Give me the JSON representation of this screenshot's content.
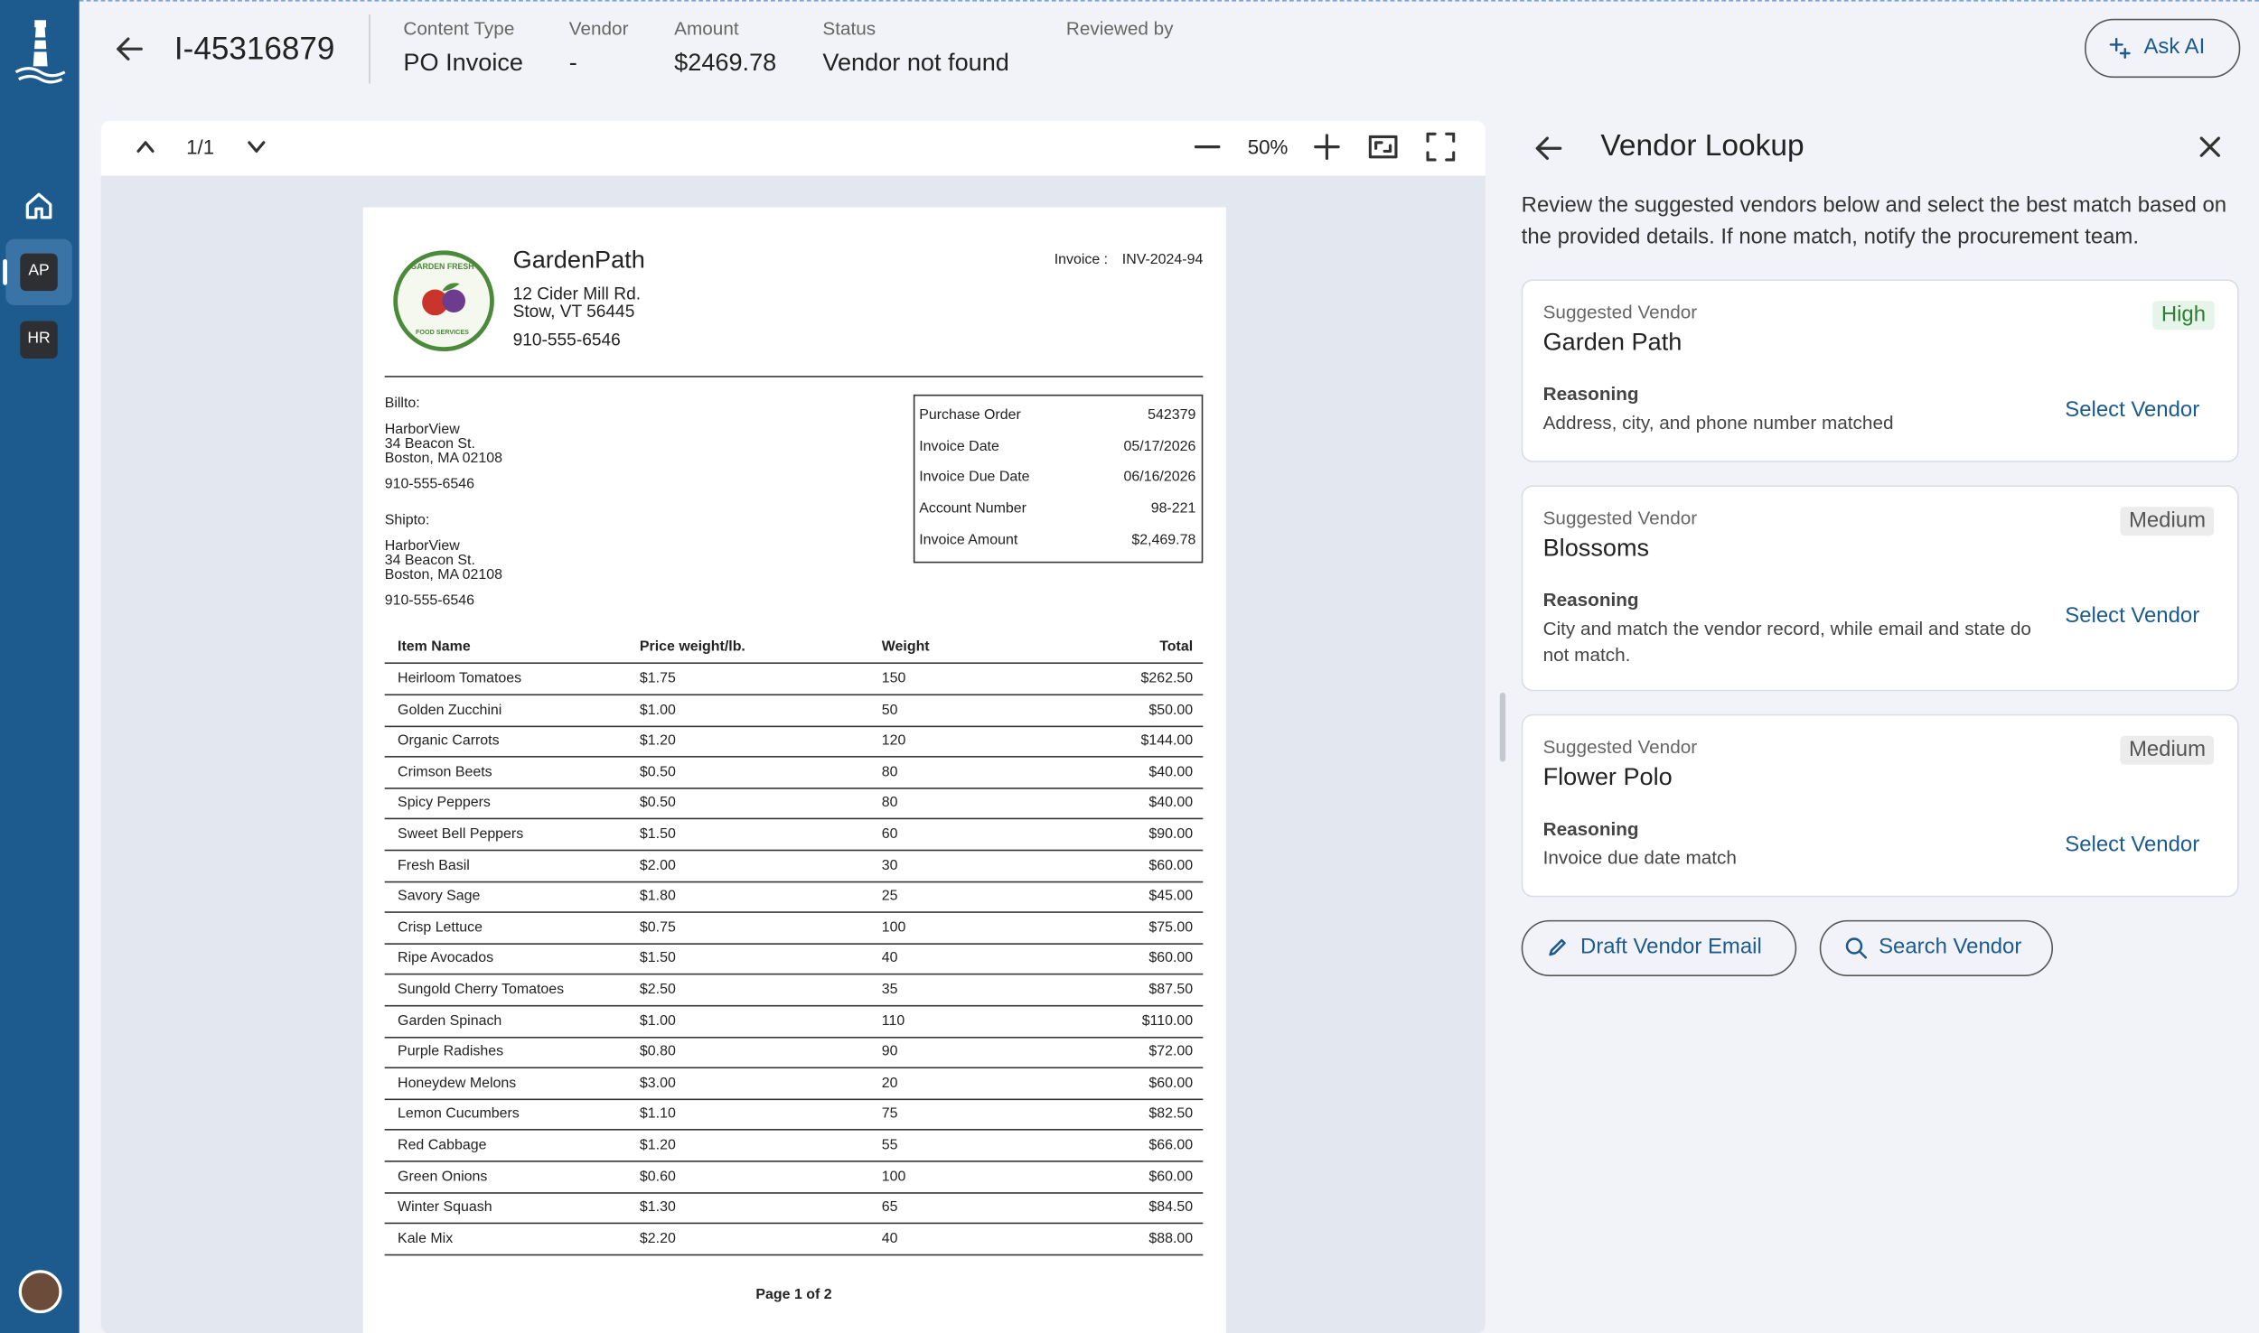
{
  "app": {
    "sidebar_apps": [
      "AP",
      "HR"
    ]
  },
  "header": {
    "invoice_id": "I-45316879",
    "fields": [
      {
        "label": "Content Type",
        "value": "PO Invoice"
      },
      {
        "label": "Vendor",
        "value": "-"
      },
      {
        "label": "Amount",
        "value": "$2469.78"
      },
      {
        "label": "Status",
        "value": "Vendor not found"
      }
    ],
    "reviewed_by_label": "Reviewed by",
    "ask_ai": "Ask AI"
  },
  "viewer": {
    "page_indicator": "1/1",
    "zoom": "50%"
  },
  "invoice": {
    "logo_top": "GARDEN FRESH",
    "logo_bottom": "FOOD SERVICES",
    "company": "GardenPath",
    "address": [
      "12 Cider Mill Rd.",
      "Stow, VT 56445"
    ],
    "phone": "910-555-6546",
    "invoice_label": "Invoice :",
    "invoice_number": "INV-2024-94",
    "bill_to": {
      "label": "Billto:",
      "lines": [
        "HarborView",
        "34 Beacon St.",
        "Boston, MA 02108"
      ],
      "phone": "910-555-6546"
    },
    "ship_to": {
      "label": "Shipto:",
      "lines": [
        "HarborView",
        "34 Beacon St.",
        "Boston, MA 02108"
      ],
      "phone": "910-555-6546"
    },
    "summary": [
      [
        "Purchase Order",
        "542379"
      ],
      [
        "Invoice Date",
        "05/17/2026"
      ],
      [
        "Invoice Due Date",
        "06/16/2026"
      ],
      [
        "Account Number",
        "98-221"
      ],
      [
        "Invoice Amount",
        "$2,469.78"
      ]
    ],
    "items": {
      "columns": [
        "Item Name",
        "Price weight/lb.",
        "Weight",
        "Total"
      ],
      "rows": [
        [
          "Heirloom Tomatoes",
          "$1.75",
          "150",
          "$262.50"
        ],
        [
          "Golden Zucchini",
          "$1.00",
          "50",
          "$50.00"
        ],
        [
          "Organic Carrots",
          "$1.20",
          "120",
          "$144.00"
        ],
        [
          "Crimson Beets",
          "$0.50",
          "80",
          "$40.00"
        ],
        [
          "Spicy Peppers",
          "$0.50",
          "80",
          "$40.00"
        ],
        [
          "Sweet Bell Peppers",
          "$1.50",
          "60",
          "$90.00"
        ],
        [
          "Fresh Basil",
          "$2.00",
          "30",
          "$60.00"
        ],
        [
          "Savory Sage",
          "$1.80",
          "25",
          "$45.00"
        ],
        [
          "Crisp Lettuce",
          "$0.75",
          "100",
          "$75.00"
        ],
        [
          "Ripe Avocados",
          "$1.50",
          "40",
          "$60.00"
        ],
        [
          "Sungold Cherry Tomatoes",
          "$2.50",
          "35",
          "$87.50"
        ],
        [
          "Garden Spinach",
          "$1.00",
          "110",
          "$110.00"
        ],
        [
          "Purple Radishes",
          "$0.80",
          "90",
          "$72.00"
        ],
        [
          "Honeydew Melons",
          "$3.00",
          "20",
          "$60.00"
        ],
        [
          "Lemon Cucumbers",
          "$1.10",
          "75",
          "$82.50"
        ],
        [
          "Red Cabbage",
          "$1.20",
          "55",
          "$66.00"
        ],
        [
          "Green Onions",
          "$0.60",
          "100",
          "$60.00"
        ],
        [
          "Winter Squash",
          "$1.30",
          "65",
          "$84.50"
        ],
        [
          "Kale Mix",
          "$2.20",
          "40",
          "$88.00"
        ]
      ]
    },
    "footer": "Page 1 of 2"
  },
  "vendor_panel": {
    "title": "Vendor Lookup",
    "description": "Review the suggested vendors below and select the best match based on the provided details. If none match, notify the procurement team.",
    "suggestions": [
      {
        "label": "Suggested Vendor",
        "name": "Garden Path",
        "confidence": "High",
        "reasoning_label": "Reasoning",
        "reasoning": "Address, city, and phone number matched",
        "action": "Select Vendor"
      },
      {
        "label": "Suggested Vendor",
        "name": "Blossoms",
        "confidence": "Medium",
        "reasoning_label": "Reasoning",
        "reasoning": "City and match the vendor record, while email and state do not match.",
        "action": "Select Vendor"
      },
      {
        "label": "Suggested Vendor",
        "name": "Flower Polo",
        "confidence": "Medium",
        "reasoning_label": "Reasoning",
        "reasoning": "Invoice due date match",
        "action": "Select Vendor"
      }
    ],
    "draft_email": "Draft Vendor Email",
    "search_vendor": "Search Vendor"
  }
}
